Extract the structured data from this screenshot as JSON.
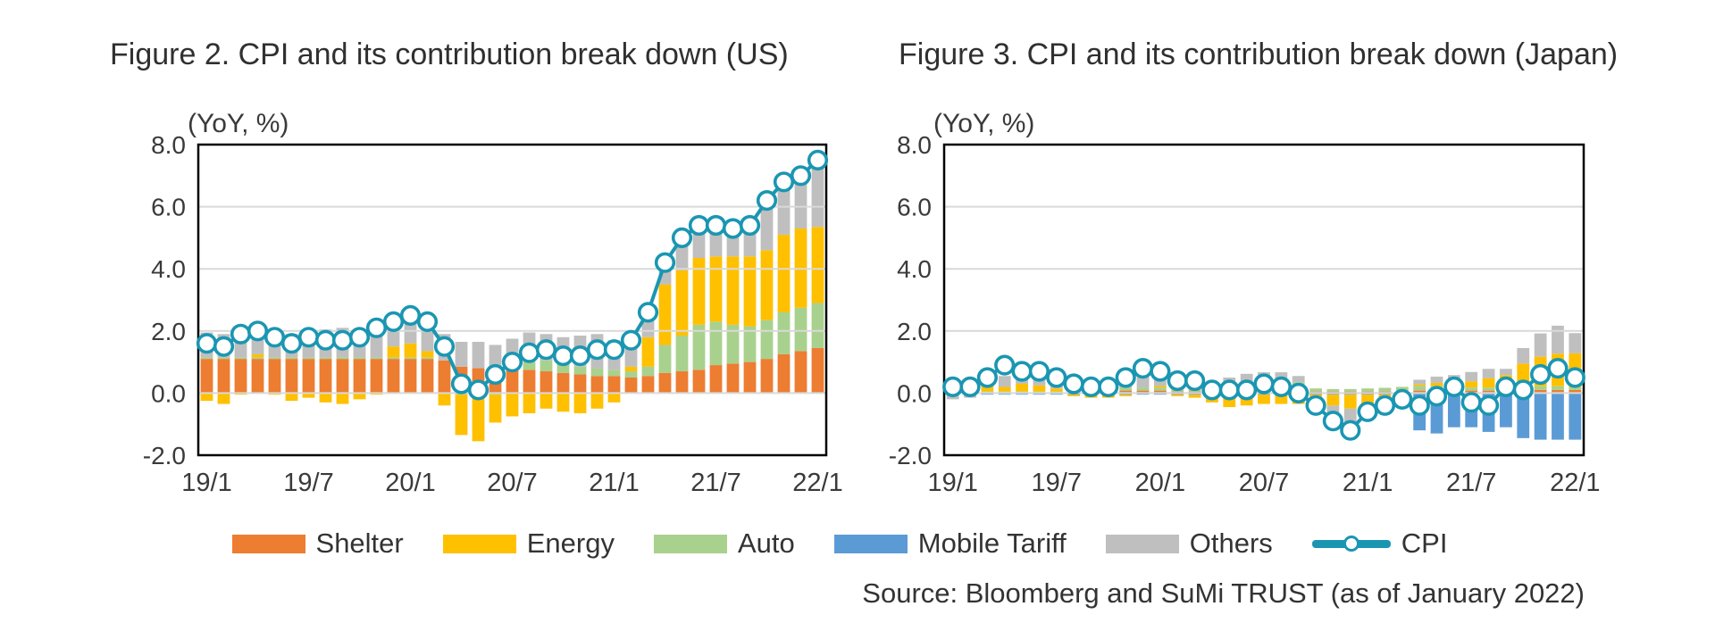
{
  "figures": [
    {
      "id": "us",
      "title": "Figure 2. CPI and its contribution break down (US)",
      "y_unit_label": "(YoY, %)"
    },
    {
      "id": "japan",
      "title": "Figure 3. CPI and its contribution break down (Japan)",
      "y_unit_label": "(YoY, %)"
    }
  ],
  "legend": {
    "items": [
      {
        "label": "Shelter",
        "color": "#ED7D31",
        "type": "swatch"
      },
      {
        "label": "Energy",
        "color": "#FFC000",
        "type": "swatch"
      },
      {
        "label": "Auto",
        "color": "#A9D18E",
        "type": "swatch"
      },
      {
        "label": "Mobile Tariff",
        "color": "#5B9BD5",
        "type": "swatch"
      },
      {
        "label": "Others",
        "color": "#BFBFBF",
        "type": "swatch"
      },
      {
        "label": "CPI",
        "color": "#1A96B2",
        "type": "line-marker"
      }
    ]
  },
  "source": "Source: Bloomberg and SuMi TRUST (as of January 2022)",
  "colors": {
    "gridline": "#D9D9D9",
    "border": "#000000",
    "axis_text": "#3A3A3A",
    "cpi_line": "#1A96B2",
    "shelter": "#ED7D31",
    "energy": "#FFC000",
    "auto": "#A9D18E",
    "mobile_tariff": "#5B9BD5",
    "others": "#BFBFBF"
  },
  "chart_data": [
    {
      "type": "bar+line",
      "id": "us",
      "title": "Figure 2. CPI and its contribution break down (US)",
      "ylabel": "(YoY, %)",
      "ylim": [
        -2,
        8
      ],
      "gridline_values": [
        6,
        4,
        2,
        0
      ],
      "y_ticks": [
        {
          "value": 8,
          "label": "8.0"
        },
        {
          "value": 6,
          "label": "6.0"
        },
        {
          "value": 4,
          "label": "4.0"
        },
        {
          "value": 2,
          "label": "2.0"
        },
        {
          "value": 0,
          "label": "0.0"
        },
        {
          "value": -2,
          "label": "-2.0"
        }
      ],
      "x_ticks": [
        {
          "index": 0,
          "label": "19/1"
        },
        {
          "index": 6,
          "label": "19/7"
        },
        {
          "index": 12,
          "label": "20/1"
        },
        {
          "index": 18,
          "label": "20/7"
        },
        {
          "index": 24,
          "label": "21/1"
        },
        {
          "index": 30,
          "label": "21/7"
        },
        {
          "index": 36,
          "label": "22/1"
        }
      ],
      "categories": [
        "19/1",
        "19/2",
        "19/3",
        "19/4",
        "19/5",
        "19/6",
        "19/7",
        "19/8",
        "19/9",
        "19/10",
        "19/11",
        "19/12",
        "20/1",
        "20/2",
        "20/3",
        "20/4",
        "20/5",
        "20/6",
        "20/7",
        "20/8",
        "20/9",
        "20/10",
        "20/11",
        "20/12",
        "21/1",
        "21/2",
        "21/3",
        "21/4",
        "21/5",
        "21/6",
        "21/7",
        "21/8",
        "21/9",
        "21/10",
        "21/11",
        "21/12",
        "22/1"
      ],
      "series": [
        {
          "name": "Shelter",
          "color": "#ED7D31",
          "values": [
            1.1,
            1.1,
            1.1,
            1.1,
            1.1,
            1.1,
            1.1,
            1.1,
            1.1,
            1.1,
            1.1,
            1.1,
            1.1,
            1.1,
            1.05,
            0.85,
            0.8,
            0.75,
            0.75,
            0.75,
            0.7,
            0.65,
            0.6,
            0.55,
            0.55,
            0.5,
            0.55,
            0.65,
            0.7,
            0.75,
            0.9,
            0.95,
            1.0,
            1.1,
            1.25,
            1.35,
            1.45
          ]
        },
        {
          "name": "Auto",
          "color": "#A9D18E",
          "values": [
            0.05,
            0.05,
            0.05,
            0.05,
            0.05,
            0.05,
            0.05,
            0.05,
            0.05,
            0.05,
            0.05,
            0.05,
            0.05,
            0.05,
            0.0,
            -0.05,
            -0.1,
            -0.05,
            0.05,
            0.25,
            0.35,
            0.3,
            0.25,
            0.25,
            0.2,
            0.2,
            0.3,
            0.9,
            1.15,
            1.45,
            1.4,
            1.25,
            1.15,
            1.25,
            1.35,
            1.4,
            1.45
          ]
        },
        {
          "name": "Mobile Tariff",
          "color": "#5B9BD5",
          "values": [
            0,
            0,
            0,
            0,
            0,
            0,
            0,
            0,
            0,
            0,
            0,
            0,
            0,
            0,
            0,
            0,
            0,
            0,
            0,
            0,
            0,
            0,
            0,
            0,
            0,
            0,
            0,
            0,
            0,
            0,
            0,
            0,
            0,
            0,
            0,
            0,
            0
          ]
        },
        {
          "name": "Energy",
          "color": "#FFC000",
          "values": [
            -0.25,
            -0.35,
            -0.05,
            0.1,
            -0.05,
            -0.25,
            -0.15,
            -0.3,
            -0.35,
            -0.2,
            -0.05,
            0.35,
            0.45,
            0.2,
            -0.4,
            -1.3,
            -1.45,
            -0.9,
            -0.75,
            -0.65,
            -0.5,
            -0.6,
            -0.65,
            -0.5,
            -0.3,
            0.15,
            0.95,
            1.95,
            2.1,
            2.15,
            2.1,
            2.2,
            2.25,
            2.25,
            2.5,
            2.55,
            2.45
          ]
        },
        {
          "name": "Others",
          "color": "#BFBFBF",
          "values": [
            0.8,
            0.75,
            0.85,
            0.8,
            0.75,
            0.75,
            0.85,
            0.9,
            0.95,
            0.9,
            1.0,
            0.85,
            0.9,
            0.95,
            0.85,
            0.8,
            0.85,
            0.8,
            0.95,
            0.95,
            0.85,
            0.85,
            1.0,
            1.1,
            0.95,
            0.85,
            0.8,
            0.7,
            1.05,
            1.05,
            1.0,
            0.9,
            1.0,
            1.6,
            1.7,
            1.7,
            2.15
          ]
        }
      ],
      "line": {
        "name": "CPI",
        "color": "#1A96B2",
        "values": [
          1.6,
          1.5,
          1.9,
          2.0,
          1.8,
          1.6,
          1.8,
          1.7,
          1.7,
          1.8,
          2.1,
          2.3,
          2.5,
          2.3,
          1.5,
          0.3,
          0.1,
          0.6,
          1.0,
          1.3,
          1.4,
          1.2,
          1.2,
          1.4,
          1.4,
          1.7,
          2.6,
          4.2,
          5.0,
          5.4,
          5.4,
          5.3,
          5.4,
          6.2,
          6.8,
          7.0,
          7.5
        ]
      }
    },
    {
      "type": "bar+line",
      "id": "japan",
      "title": "Figure 3. CPI and its contribution break down (Japan)",
      "ylabel": "(YoY, %)",
      "ylim": [
        -2,
        8
      ],
      "gridline_values": [
        6,
        4,
        2,
        0
      ],
      "y_ticks": [
        {
          "value": 8,
          "label": "8.0"
        },
        {
          "value": 6,
          "label": "6.0"
        },
        {
          "value": 4,
          "label": "4.0"
        },
        {
          "value": 2,
          "label": "2.0"
        },
        {
          "value": 0,
          "label": "0.0"
        },
        {
          "value": -2,
          "label": "-2.0"
        }
      ],
      "x_ticks": [
        {
          "index": 0,
          "label": "19/1"
        },
        {
          "index": 6,
          "label": "19/7"
        },
        {
          "index": 12,
          "label": "20/1"
        },
        {
          "index": 18,
          "label": "20/7"
        },
        {
          "index": 24,
          "label": "21/1"
        },
        {
          "index": 30,
          "label": "21/7"
        },
        {
          "index": 36,
          "label": "22/1"
        }
      ],
      "categories": [
        "19/1",
        "19/2",
        "19/3",
        "19/4",
        "19/5",
        "19/6",
        "19/7",
        "19/8",
        "19/9",
        "19/10",
        "19/11",
        "19/12",
        "20/1",
        "20/2",
        "20/3",
        "20/4",
        "20/5",
        "20/6",
        "20/7",
        "20/8",
        "20/9",
        "20/10",
        "20/11",
        "20/12",
        "21/1",
        "21/2",
        "21/3",
        "21/4",
        "21/5",
        "21/6",
        "21/7",
        "21/8",
        "21/9",
        "21/10",
        "21/11",
        "21/12",
        "22/1"
      ],
      "series": [
        {
          "name": "Shelter",
          "color": "#ED7D31",
          "values": [
            0,
            0,
            0,
            0,
            0,
            0,
            0,
            0,
            0,
            0.05,
            0.08,
            0.08,
            0.08,
            0.05,
            0.05,
            0.05,
            0.1,
            0.12,
            0.12,
            0.12,
            0.1,
            0.05,
            0.05,
            0.05,
            0.05,
            0.05,
            0.05,
            0.08,
            0.08,
            0.08,
            0.08,
            0.08,
            0.08,
            0.1,
            0.1,
            0.1,
            0.1
          ]
        },
        {
          "name": "Auto",
          "color": "#A9D18E",
          "values": [
            0,
            0,
            0.05,
            0.05,
            0.05,
            0.05,
            0.05,
            0.05,
            0.05,
            0.1,
            0.1,
            0.1,
            0.1,
            0.05,
            0.05,
            0.05,
            0.1,
            0.2,
            0.25,
            0.3,
            0.25,
            0.1,
            0.08,
            0.08,
            0.1,
            0.12,
            0.15,
            0.15,
            0.15,
            0.1,
            0.1,
            0.1,
            0.1,
            0.1,
            0.12,
            0.12,
            0.08
          ]
        },
        {
          "name": "Mobile Tariff",
          "color": "#5B9BD5",
          "values": [
            -0.05,
            -0.05,
            -0.05,
            -0.05,
            -0.05,
            -0.05,
            -0.05,
            -0.05,
            -0.05,
            -0.05,
            -0.05,
            -0.05,
            -0.05,
            -0.05,
            -0.05,
            -0.05,
            -0.05,
            -0.05,
            -0.05,
            -0.05,
            -0.05,
            -0.05,
            -0.05,
            -0.05,
            -0.05,
            -0.05,
            -0.05,
            -1.2,
            -1.3,
            -1.1,
            -1.1,
            -1.25,
            -1.1,
            -1.45,
            -1.5,
            -1.5,
            -1.5
          ]
        },
        {
          "name": "Energy",
          "color": "#FFC000",
          "values": [
            0.25,
            0.2,
            0.15,
            0.15,
            0.25,
            0.2,
            0.1,
            -0.05,
            -0.1,
            -0.1,
            -0.05,
            0.0,
            0.05,
            -0.05,
            -0.1,
            -0.25,
            -0.4,
            -0.35,
            -0.3,
            -0.3,
            -0.3,
            -0.3,
            -0.35,
            -0.45,
            -0.5,
            -0.3,
            -0.1,
            0.05,
            0.1,
            0.15,
            0.2,
            0.3,
            0.4,
            0.75,
            0.95,
            1.05,
            1.1
          ]
        },
        {
          "name": "Others",
          "color": "#BFBFBF",
          "values": [
            -0.15,
            -0.1,
            0.3,
            0.35,
            0.25,
            0.35,
            0.3,
            0.25,
            0.2,
            0.15,
            0.3,
            0.5,
            0.45,
            0.3,
            0.35,
            0.25,
            0.3,
            0.3,
            0.3,
            0.25,
            0.2,
            -0.1,
            -0.4,
            -0.45,
            -0.25,
            -0.3,
            -0.3,
            0.15,
            0.2,
            0.25,
            0.3,
            0.3,
            0.2,
            0.5,
            0.75,
            0.9,
            0.65
          ]
        }
      ],
      "line": {
        "name": "CPI",
        "color": "#1A96B2",
        "values": [
          0.2,
          0.2,
          0.5,
          0.9,
          0.7,
          0.7,
          0.5,
          0.3,
          0.2,
          0.2,
          0.5,
          0.8,
          0.7,
          0.4,
          0.4,
          0.1,
          0.1,
          0.1,
          0.3,
          0.2,
          0.0,
          -0.4,
          -0.9,
          -1.2,
          -0.6,
          -0.4,
          -0.2,
          -0.4,
          -0.1,
          0.2,
          -0.3,
          -0.4,
          0.2,
          0.1,
          0.6,
          0.8,
          0.5
        ]
      }
    }
  ]
}
